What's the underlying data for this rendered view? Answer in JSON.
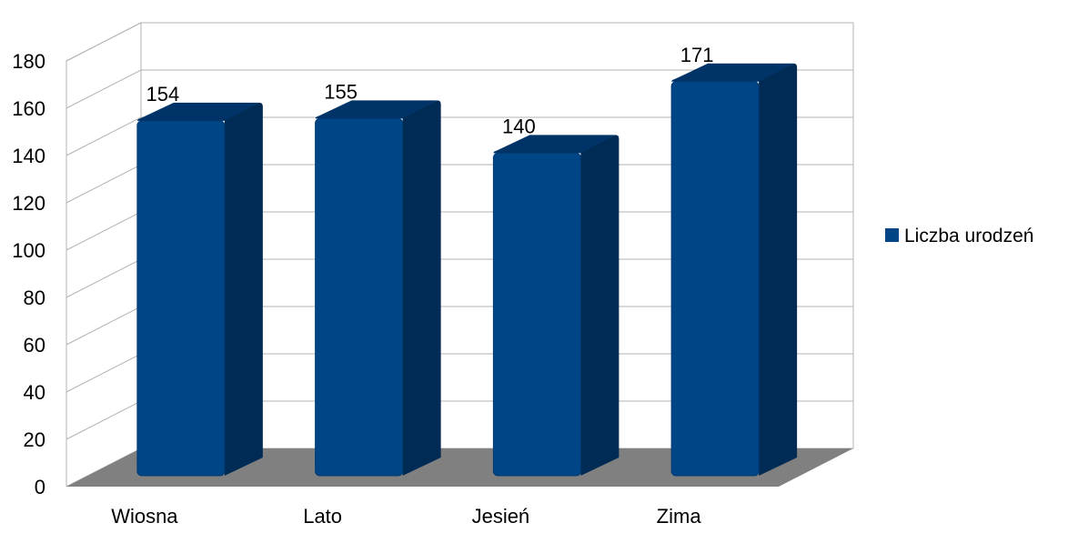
{
  "chart_data": {
    "type": "bar",
    "style": "3d-column",
    "categories": [
      "Wiosna",
      "Lato",
      "Jesień",
      "Zima"
    ],
    "series": [
      {
        "name": "Liczba urodzeń",
        "values": [
          154,
          155,
          140,
          171
        ],
        "color": "#004586"
      }
    ],
    "data_labels": [
      "154",
      "155",
      "140",
      "171"
    ],
    "y_ticks": [
      "0",
      "20",
      "40",
      "60",
      "80",
      "100",
      "120",
      "140",
      "160",
      "180"
    ],
    "ylim": [
      0,
      180
    ],
    "ystep": 20,
    "grid": true,
    "legend": {
      "position": "right",
      "items": [
        "Liczba urodzeń"
      ]
    },
    "colors": {
      "bar_front": "#004586",
      "bar_side": "#002b55",
      "bar_top": "#003468",
      "floor": "#808080",
      "gridline": "#b3b3b3",
      "legend_swatch": "#004586"
    },
    "title": "",
    "xlabel": "",
    "ylabel": ""
  }
}
